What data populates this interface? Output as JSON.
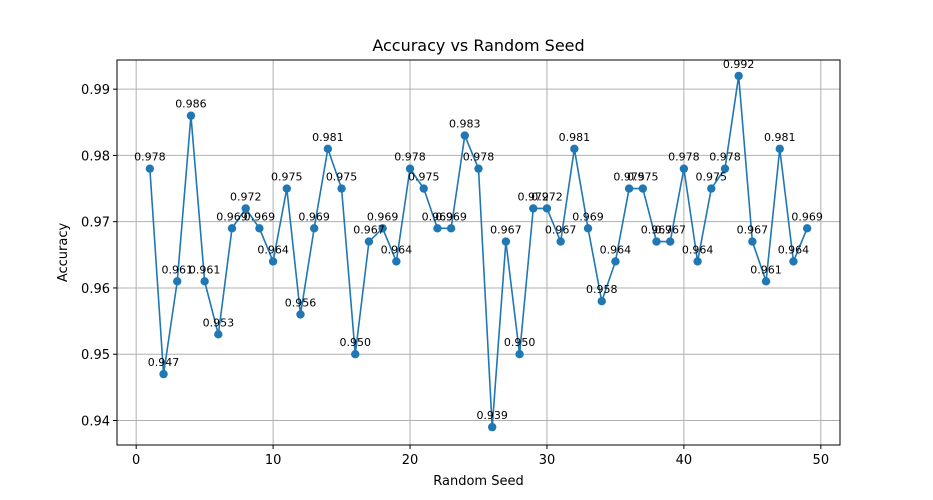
{
  "chart_data": {
    "type": "line",
    "title": "Accuracy vs Random Seed",
    "xlabel": "Random Seed",
    "ylabel": "Accuracy",
    "xlim": [
      -1.4,
      51.4
    ],
    "ylim": [
      0.9363,
      0.9944
    ],
    "xticks": [
      0,
      10,
      20,
      30,
      40,
      50
    ],
    "xtick_labels": [
      "0",
      "10",
      "20",
      "30",
      "40",
      "50"
    ],
    "yticks": [
      0.94,
      0.95,
      0.96,
      0.97,
      0.98,
      0.99
    ],
    "ytick_labels": [
      "0.94",
      "0.95",
      "0.96",
      "0.97",
      "0.98",
      "0.99"
    ],
    "grid": true,
    "line_color": "#1f77b4",
    "x": [
      1,
      2,
      3,
      4,
      5,
      6,
      7,
      8,
      9,
      10,
      11,
      12,
      13,
      14,
      15,
      16,
      17,
      18,
      19,
      20,
      21,
      22,
      23,
      24,
      25,
      26,
      27,
      28,
      29,
      30,
      31,
      32,
      33,
      34,
      35,
      36,
      37,
      38,
      39,
      40,
      41,
      42,
      43,
      44,
      45,
      46,
      47,
      48,
      49
    ],
    "values": [
      0.978,
      0.947,
      0.961,
      0.986,
      0.961,
      0.953,
      0.969,
      0.972,
      0.969,
      0.964,
      0.975,
      0.956,
      0.969,
      0.981,
      0.975,
      0.95,
      0.967,
      0.969,
      0.964,
      0.978,
      0.975,
      0.969,
      0.969,
      0.983,
      0.978,
      0.939,
      0.967,
      0.95,
      0.972,
      0.972,
      0.967,
      0.981,
      0.969,
      0.958,
      0.964,
      0.975,
      0.975,
      0.967,
      0.967,
      0.978,
      0.964,
      0.975,
      0.978,
      0.992,
      0.967,
      0.961,
      0.981,
      0.964,
      0.969
    ],
    "data_labels": [
      "0.978",
      "0.947",
      "0.961",
      "0.986",
      "0.961",
      "0.953",
      "0.969",
      "0.972",
      "0.969",
      "0.964",
      "0.975",
      "0.956",
      "0.969",
      "0.981",
      "0.975",
      "0.950",
      "0.967",
      "0.969",
      "0.964",
      "0.978",
      "0.975",
      "0.969",
      "0.969",
      "0.983",
      "0.978",
      "0.939",
      "0.967",
      "0.950",
      "0.972",
      "0.972",
      "0.967",
      "0.981",
      "0.969",
      "0.958",
      "0.964",
      "0.975",
      "0.975",
      "0.967",
      "0.967",
      "0.978",
      "0.964",
      "0.975",
      "0.978",
      "0.992",
      "0.967",
      "0.961",
      "0.981",
      "0.964",
      "0.969"
    ]
  }
}
